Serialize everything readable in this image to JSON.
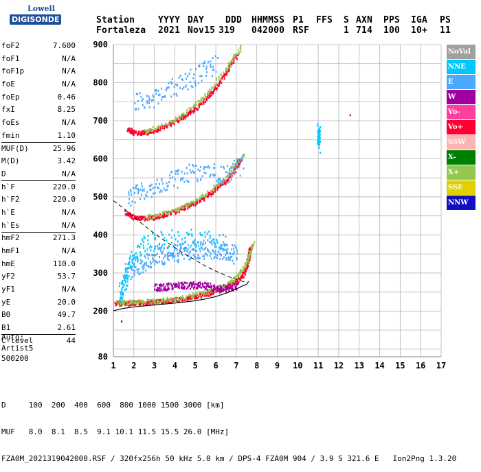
{
  "logo": {
    "line1": "Lowell",
    "line2": "DIGISONDE"
  },
  "header": {
    "labels": [
      "Station",
      "YYYY",
      "DAY",
      "DDD",
      "HHMMSS",
      "P1",
      "FFS",
      "S",
      "AXN",
      "PPS",
      "IGA",
      "PS"
    ],
    "values": [
      "Fortaleza",
      "2021",
      "Nov15",
      "319",
      "042000",
      "RSF",
      "1",
      "714",
      "100",
      "10+",
      "11"
    ]
  },
  "parameters": [
    {
      "label": "foF2",
      "value": "7.600"
    },
    {
      "label": "foF1",
      "value": "N/A"
    },
    {
      "label": "foF1p",
      "value": "N/A"
    },
    {
      "label": "foE",
      "value": "N/A"
    },
    {
      "label": "foEp",
      "value": "0.46"
    },
    {
      "label": "fxI",
      "value": "8.25"
    },
    {
      "label": "foEs",
      "value": "N/A"
    },
    {
      "label": "fmin",
      "value": "1.10"
    },
    {
      "label": "MUF(D)",
      "value": "25.96"
    },
    {
      "label": "M(D)",
      "value": "3.42"
    },
    {
      "label": "D",
      "value": "N/A"
    },
    {
      "label": "h`F",
      "value": "220.0"
    },
    {
      "label": "h`F2",
      "value": "220.0"
    },
    {
      "label": "h`E",
      "value": "N/A"
    },
    {
      "label": "h`Es",
      "value": "N/A"
    },
    {
      "label": "hmF2",
      "value": "271.3"
    },
    {
      "label": "hmF1",
      "value": "N/A"
    },
    {
      "label": "hmE",
      "value": "110.0"
    },
    {
      "label": "yF2",
      "value": "53.7"
    },
    {
      "label": "yF1",
      "value": "N/A"
    },
    {
      "label": "yE",
      "value": "20.0"
    },
    {
      "label": "B0",
      "value": "49.7"
    },
    {
      "label": "B1",
      "value": "2.61"
    },
    {
      "label": "C-level",
      "value": "44"
    }
  ],
  "extra": {
    "line1": "Auto:",
    "line2": "Artist5",
    "line3": "500200"
  },
  "legend": [
    {
      "label": "NoVal",
      "color": "#a0a0a0"
    },
    {
      "label": "NNE",
      "color": "#00c8ff"
    },
    {
      "label": "E",
      "color": "#4aa8ff"
    },
    {
      "label": "W",
      "color": "#a000a0"
    },
    {
      "label": "Vo-",
      "color": "#ff3fa0"
    },
    {
      "label": "Vo+",
      "color": "#ff0030"
    },
    {
      "label": "SSW",
      "color": "#ffb4b4"
    },
    {
      "label": "X-",
      "color": "#008000"
    },
    {
      "label": "X+",
      "color": "#90c850"
    },
    {
      "label": "SSE",
      "color": "#e0d000"
    },
    {
      "label": "NNW",
      "color": "#1010c0"
    }
  ],
  "footer": {
    "line1": "D     100  200  400  600  800 1000 1500 3000 [km]",
    "line2": "MUF   8.0  8.1  8.5  9.1 10.1 11.5 15.5 26.0 [MHz]",
    "line3": "FZA0M_2021319042000.RSF / 320fx256h 50 kHz 5.0 km / DPS-4 FZA0M 904 / 3.9 S 321.6 E   Ion2Png 1.3.20"
  },
  "chart_data": {
    "type": "scatter",
    "xlim": [
      1,
      17
    ],
    "ylim": [
      80,
      900
    ],
    "xticks": [
      1,
      2,
      3,
      4,
      5,
      6,
      7,
      8,
      9,
      10,
      11,
      12,
      13,
      14,
      15,
      16,
      17
    ],
    "yticks": [
      80,
      200,
      300,
      400,
      500,
      600,
      700,
      800,
      900
    ],
    "grid": true,
    "profile_curve": [
      [
        1.0,
        201
      ],
      [
        1.5,
        207
      ],
      [
        2.0,
        211
      ],
      [
        3.0,
        216
      ],
      [
        4.0,
        221
      ],
      [
        5.0,
        227
      ],
      [
        5.5,
        232
      ],
      [
        6.0,
        238
      ],
      [
        6.5,
        247
      ],
      [
        7.0,
        258
      ],
      [
        7.3,
        266
      ],
      [
        7.5,
        270
      ],
      [
        7.6,
        278
      ]
    ],
    "dashed_curve": [
      [
        1.0,
        490
      ],
      [
        1.5,
        470
      ],
      [
        2.0,
        447
      ],
      [
        2.5,
        425
      ],
      [
        3.0,
        404
      ],
      [
        3.5,
        385
      ],
      [
        4.0,
        367
      ],
      [
        4.5,
        349
      ],
      [
        5.0,
        334
      ],
      [
        5.5,
        318
      ],
      [
        6.0,
        305
      ],
      [
        6.5,
        293
      ],
      [
        7.0,
        283
      ],
      [
        7.5,
        275
      ]
    ],
    "traces": [
      {
        "name": "Vo+",
        "color": "#ff0030",
        "points": [
          [
            1.1,
            222
          ],
          [
            1.5,
            222
          ],
          [
            2.0,
            223
          ],
          [
            2.5,
            224
          ],
          [
            3.0,
            226
          ],
          [
            3.5,
            228
          ],
          [
            4.0,
            231
          ],
          [
            4.5,
            235
          ],
          [
            5.0,
            240
          ],
          [
            5.5,
            246
          ],
          [
            6.0,
            254
          ],
          [
            6.5,
            264
          ],
          [
            7.0,
            280
          ],
          [
            7.3,
            296
          ],
          [
            7.5,
            320
          ],
          [
            7.6,
            350
          ],
          [
            7.7,
            372
          ]
        ]
      },
      {
        "name": "Vo+",
        "color": "#ff0030",
        "points": [
          [
            1.6,
            460
          ],
          [
            2.0,
            447
          ],
          [
            2.5,
            445
          ],
          [
            3.0,
            448
          ],
          [
            3.5,
            455
          ],
          [
            4.0,
            464
          ],
          [
            4.5,
            474
          ],
          [
            5.0,
            487
          ],
          [
            5.5,
            503
          ],
          [
            6.0,
            522
          ],
          [
            6.5,
            546
          ],
          [
            7.0,
            580
          ],
          [
            7.2,
            605
          ]
        ]
      },
      {
        "name": "Vo+",
        "color": "#ff0030",
        "points": [
          [
            1.7,
            680
          ],
          [
            2.0,
            670
          ],
          [
            2.5,
            670
          ],
          [
            3.0,
            676
          ],
          [
            3.5,
            686
          ],
          [
            4.0,
            700
          ],
          [
            4.5,
            716
          ],
          [
            5.0,
            736
          ],
          [
            5.5,
            760
          ],
          [
            6.0,
            790
          ],
          [
            6.5,
            830
          ],
          [
            7.0,
            875
          ]
        ]
      },
      {
        "name": "X+",
        "color": "#90c850",
        "points": [
          [
            1.2,
            225
          ],
          [
            2.0,
            226
          ],
          [
            3.0,
            229
          ],
          [
            4.0,
            234
          ],
          [
            5.0,
            245
          ],
          [
            6.0,
            260
          ],
          [
            6.5,
            272
          ],
          [
            7.0,
            290
          ],
          [
            7.5,
            330
          ],
          [
            7.8,
            380
          ]
        ]
      },
      {
        "name": "X+",
        "color": "#90c850",
        "points": [
          [
            2.5,
            449
          ],
          [
            3.5,
            459
          ],
          [
            4.5,
            478
          ],
          [
            5.5,
            508
          ],
          [
            6.5,
            552
          ],
          [
            7.3,
            612
          ]
        ]
      },
      {
        "name": "X+",
        "color": "#90c850",
        "points": [
          [
            2.5,
            674
          ],
          [
            3.5,
            690
          ],
          [
            4.5,
            722
          ],
          [
            5.5,
            768
          ],
          [
            6.5,
            840
          ],
          [
            7.2,
            895
          ]
        ]
      },
      {
        "name": "W",
        "color": "#a000a0",
        "points": [
          [
            3.0,
            264
          ],
          [
            3.5,
            266
          ],
          [
            4.0,
            268
          ],
          [
            4.5,
            269
          ],
          [
            5.0,
            270
          ],
          [
            5.5,
            268
          ],
          [
            6.0,
            262
          ],
          [
            6.5,
            262
          ],
          [
            7.0,
            268
          ]
        ]
      },
      {
        "name": "E",
        "color": "#4aa8ff",
        "points": [
          [
            1.5,
            300
          ],
          [
            2.0,
            318
          ],
          [
            2.5,
            330
          ],
          [
            3.0,
            345
          ],
          [
            3.5,
            350
          ],
          [
            4.0,
            355
          ],
          [
            4.5,
            360
          ],
          [
            5.0,
            365
          ],
          [
            5.5,
            365
          ],
          [
            6.0,
            360
          ],
          [
            6.5,
            355
          ],
          [
            7.0,
            350
          ]
        ]
      },
      {
        "name": "E",
        "color": "#4aa8ff",
        "points": [
          [
            1.7,
            500
          ],
          [
            2.5,
            520
          ],
          [
            3.5,
            540
          ],
          [
            4.5,
            560
          ],
          [
            5.5,
            570
          ],
          [
            6.5,
            560
          ],
          [
            7.3,
            590
          ]
        ]
      },
      {
        "name": "E",
        "color": "#4aa8ff",
        "points": [
          [
            2.0,
            750
          ],
          [
            3.0,
            760
          ],
          [
            4.0,
            790
          ],
          [
            5.0,
            820
          ],
          [
            6.0,
            850
          ]
        ]
      },
      {
        "name": "NNE",
        "color": "#00c8ff",
        "points": [
          [
            1.3,
            250
          ],
          [
            1.5,
            270
          ],
          [
            1.8,
            330
          ],
          [
            2.5,
            380
          ],
          [
            3.5,
            390
          ],
          [
            5.0,
            395
          ],
          [
            6.5,
            380
          ]
        ]
      },
      {
        "name": "NNE",
        "color": "#00c8ff",
        "points": [
          [
            11.0,
            640
          ],
          [
            11.0,
            660
          ],
          [
            11.0,
            680
          ]
        ]
      },
      {
        "name": "W",
        "color": "#a000a0",
        "points": [
          [
            12.5,
            714
          ]
        ]
      },
      {
        "name": "NNW",
        "color": "#1010c0",
        "points": [
          [
            1.35,
            172
          ]
        ]
      }
    ]
  }
}
